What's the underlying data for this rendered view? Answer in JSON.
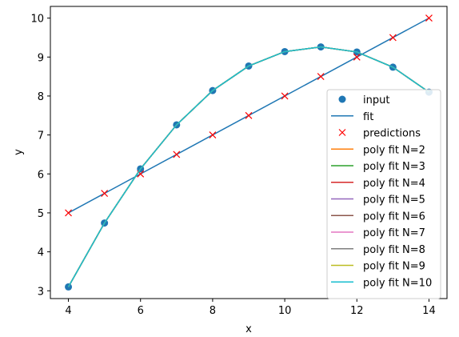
{
  "chart_data": {
    "type": "line",
    "title": "",
    "xlabel": "x",
    "ylabel": "y",
    "xlim": [
      3.5,
      14.5
    ],
    "ylim": [
      2.8,
      10.3
    ],
    "xticks": [
      4,
      6,
      8,
      10,
      12,
      14
    ],
    "yticks": [
      3,
      4,
      5,
      6,
      7,
      8,
      9,
      10
    ],
    "grid": false,
    "legend_position": "lower-right",
    "series": [
      {
        "name": "input",
        "kind": "scatter",
        "color": "#1f77b4",
        "x": [
          4,
          5,
          6,
          7,
          8,
          9,
          10,
          11,
          12,
          13,
          14
        ],
        "y": [
          3.1,
          4.74,
          6.13,
          7.26,
          8.14,
          8.77,
          9.14,
          9.26,
          9.13,
          8.74,
          8.1
        ]
      },
      {
        "name": "fit",
        "kind": "line",
        "color": "#1f77b4",
        "x": [
          4,
          14
        ],
        "y": [
          5.0,
          10.0
        ]
      },
      {
        "name": "predictions",
        "kind": "x-marker",
        "color": "#ff0000",
        "x": [
          4,
          5,
          6,
          7,
          8,
          9,
          10,
          11,
          12,
          13,
          14
        ],
        "y": [
          5.0,
          5.5,
          6.0,
          6.5,
          7.0,
          7.5,
          8.0,
          8.5,
          9.0,
          9.5,
          10.0
        ]
      },
      {
        "name": "poly fit N=2",
        "kind": "line",
        "color": "#ff7f0e",
        "x": [
          4,
          5,
          6,
          7,
          8,
          9,
          10,
          11,
          12,
          13,
          14
        ],
        "y": [
          3.1,
          4.74,
          6.13,
          7.26,
          8.14,
          8.77,
          9.14,
          9.26,
          9.13,
          8.74,
          8.1
        ]
      },
      {
        "name": "poly fit N=3",
        "kind": "line",
        "color": "#2ca02c",
        "x": [
          4,
          5,
          6,
          7,
          8,
          9,
          10,
          11,
          12,
          13,
          14
        ],
        "y": [
          3.1,
          4.74,
          6.13,
          7.26,
          8.14,
          8.77,
          9.14,
          9.26,
          9.13,
          8.74,
          8.1
        ]
      },
      {
        "name": "poly fit N=4",
        "kind": "line",
        "color": "#d62728",
        "x": [
          4,
          5,
          6,
          7,
          8,
          9,
          10,
          11,
          12,
          13,
          14
        ],
        "y": [
          3.1,
          4.74,
          6.13,
          7.26,
          8.14,
          8.77,
          9.14,
          9.26,
          9.13,
          8.74,
          8.1
        ]
      },
      {
        "name": "poly fit N=5",
        "kind": "line",
        "color": "#9467bd",
        "x": [
          4,
          5,
          6,
          7,
          8,
          9,
          10,
          11,
          12,
          13,
          14
        ],
        "y": [
          3.1,
          4.74,
          6.13,
          7.26,
          8.14,
          8.77,
          9.14,
          9.26,
          9.13,
          8.74,
          8.1
        ]
      },
      {
        "name": "poly fit N=6",
        "kind": "line",
        "color": "#8c564b",
        "x": [
          4,
          5,
          6,
          7,
          8,
          9,
          10,
          11,
          12,
          13,
          14
        ],
        "y": [
          3.1,
          4.74,
          6.13,
          7.26,
          8.14,
          8.77,
          9.14,
          9.26,
          9.13,
          8.74,
          8.1
        ]
      },
      {
        "name": "poly fit N=7",
        "kind": "line",
        "color": "#e377c2",
        "x": [
          4,
          5,
          6,
          7,
          8,
          9,
          10,
          11,
          12,
          13,
          14
        ],
        "y": [
          3.1,
          4.74,
          6.13,
          7.26,
          8.14,
          8.77,
          9.14,
          9.26,
          9.13,
          8.74,
          8.1
        ]
      },
      {
        "name": "poly fit N=8",
        "kind": "line",
        "color": "#7f7f7f",
        "x": [
          4,
          5,
          6,
          7,
          8,
          9,
          10,
          11,
          12,
          13,
          14
        ],
        "y": [
          3.1,
          4.74,
          6.13,
          7.26,
          8.14,
          8.77,
          9.14,
          9.26,
          9.13,
          8.74,
          8.1
        ]
      },
      {
        "name": "poly fit N=9",
        "kind": "line",
        "color": "#bcbd22",
        "x": [
          4,
          5,
          6,
          7,
          8,
          9,
          10,
          11,
          12,
          13,
          14
        ],
        "y": [
          3.1,
          4.74,
          6.13,
          7.26,
          8.14,
          8.77,
          9.14,
          9.26,
          9.13,
          8.74,
          8.1
        ]
      },
      {
        "name": "poly fit N=10",
        "kind": "line",
        "color": "#17becf",
        "x": [
          4,
          5,
          6,
          7,
          8,
          9,
          10,
          11,
          12,
          13,
          14
        ],
        "y": [
          3.1,
          4.74,
          6.13,
          7.26,
          8.14,
          8.77,
          9.14,
          9.26,
          9.13,
          8.74,
          8.1
        ]
      }
    ]
  }
}
